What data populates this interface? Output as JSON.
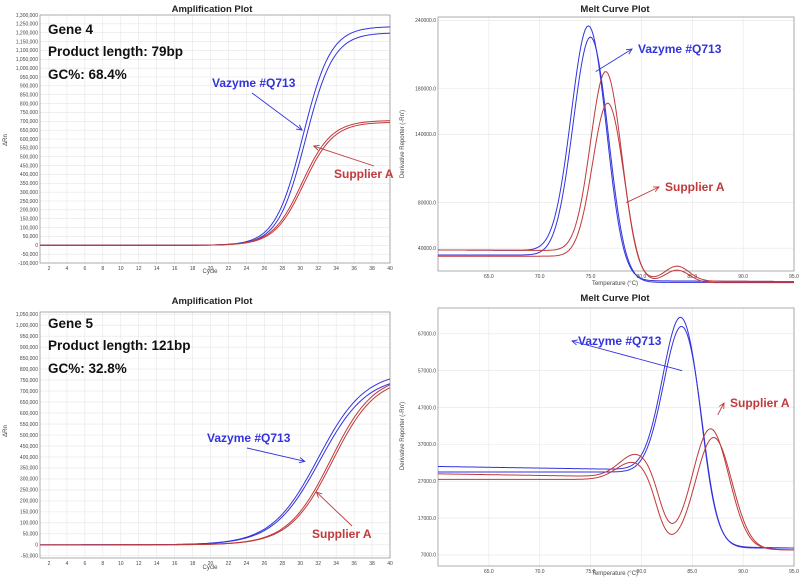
{
  "chart_data": [
    {
      "type": "line",
      "title": "Amplification Plot",
      "xlabel": "Cycle",
      "ylabel": "ΔRn",
      "xlim": [
        1,
        40
      ],
      "ylim": [
        -100000,
        1300000
      ],
      "xticks": [
        "2",
        "4",
        "6",
        "8",
        "10",
        "12",
        "14",
        "16",
        "18",
        "20",
        "22",
        "24",
        "26",
        "28",
        "30",
        "32",
        "34",
        "36",
        "38",
        "40"
      ],
      "yticks": [
        "-100,000",
        "-50,000",
        "0",
        "50,000",
        "100,000",
        "150,000",
        "200,000",
        "250,000",
        "300,000",
        "350,000",
        "400,000",
        "450,000",
        "500,000",
        "550,000",
        "600,000",
        "650,000",
        "700,000",
        "750,000",
        "800,000",
        "850,000",
        "900,000",
        "950,000",
        "1,000,000",
        "1,050,000",
        "1,100,000",
        "1,150,000",
        "1,200,000",
        "1,250,000",
        "1,300,000"
      ],
      "info": [
        "Gene 4",
        "Product length: 79bp",
        "GC%: 68.4%"
      ],
      "series": [
        {
          "name": "Vazyme #Q713",
          "color": "#3333dd",
          "plateau": 1235000,
          "midpoint": 30.3,
          "slope": 1.55
        },
        {
          "name": "Vazyme #Q713",
          "color": "#3333dd",
          "plateau": 1200000,
          "midpoint": 30.6,
          "slope": 1.55
        },
        {
          "name": "Supplier A",
          "color": "#c0393b",
          "plateau": 695000,
          "midpoint": 30.4,
          "slope": 1.65
        },
        {
          "name": "Supplier A",
          "color": "#c0393b",
          "plateau": 705000,
          "midpoint": 30.2,
          "slope": 1.65
        }
      ],
      "annotations": [
        {
          "text": "Vazyme #Q713",
          "series": "Vazyme #Q713",
          "x": 30.2,
          "y": 650000
        },
        {
          "text": "Supplier A",
          "series": "Supplier A",
          "x": 31.5,
          "y": 560000
        }
      ]
    },
    {
      "type": "line",
      "title": "Melt Curve Plot",
      "xlabel": "Temperature (°C)",
      "ylabel": "Derivative Reporter (-Rn')",
      "xlim": [
        60,
        95
      ],
      "ylim": [
        20000,
        243000
      ],
      "xticks": [
        "65.0",
        "70.0",
        "75.0",
        "80.0",
        "85.0",
        "90.0",
        "95.0"
      ],
      "yticks": [
        "40000.0",
        "80000.0",
        "140000.0",
        "180000.0",
        "240000.0"
      ],
      "series": [
        {
          "name": "Vazyme #Q713",
          "color": "#3333dd",
          "baseline": 35000,
          "peaks": [
            [
              74.8,
              198000,
              1.7
            ]
          ]
        },
        {
          "name": "Vazyme #Q713",
          "color": "#3333dd",
          "baseline": 32000,
          "peaks": [
            [
              75.0,
              192000,
              1.7
            ]
          ]
        },
        {
          "name": "Supplier A",
          "color": "#c0393b",
          "baseline": 35000,
          "peaks": [
            [
              76.5,
              158000,
              1.5
            ],
            [
              83.5,
              13000,
              1.2
            ]
          ]
        },
        {
          "name": "Supplier A",
          "color": "#c0393b",
          "baseline": 31000,
          "peaks": [
            [
              76.7,
              135000,
              1.5
            ],
            [
              83.5,
              11000,
              1.2
            ]
          ]
        }
      ],
      "annotations": [
        {
          "text": "Vazyme #Q713",
          "series": "Vazyme #Q713",
          "x": 75.5,
          "y": 195000
        },
        {
          "text": "Supplier A",
          "series": "Supplier A",
          "x": 78.5,
          "y": 80000
        }
      ]
    },
    {
      "type": "line",
      "title": "Amplification Plot",
      "xlabel": "Cycle",
      "ylabel": "ΔRn",
      "xlim": [
        1,
        40
      ],
      "ylim": [
        -60000,
        1060000
      ],
      "xticks": [
        "2",
        "4",
        "6",
        "8",
        "10",
        "12",
        "14",
        "16",
        "18",
        "20",
        "22",
        "24",
        "26",
        "28",
        "30",
        "32",
        "34",
        "36",
        "38",
        "40"
      ],
      "yticks": [
        "-50,000",
        "0",
        "50,000",
        "100,000",
        "150,000",
        "200,000",
        "250,000",
        "300,000",
        "350,000",
        "400,000",
        "450,000",
        "500,000",
        "550,000",
        "600,000",
        "650,000",
        "700,000",
        "750,000",
        "800,000",
        "850,000",
        "900,000",
        "950,000",
        "1,000,000",
        "1,050,000"
      ],
      "info": [
        "Gene 5",
        "Product length: 121bp",
        "GC%: 32.8%"
      ],
      "series": [
        {
          "name": "Vazyme #Q713",
          "color": "#3333dd",
          "plateau": 790000,
          "midpoint": 32.0,
          "slope": 2.6
        },
        {
          "name": "Vazyme #Q713",
          "color": "#3333dd",
          "plateau": 770000,
          "midpoint": 32.2,
          "slope": 2.6
        },
        {
          "name": "Supplier A",
          "color": "#c0393b",
          "plateau": 775000,
          "midpoint": 33.4,
          "slope": 2.4
        },
        {
          "name": "Supplier A",
          "color": "#c0393b",
          "plateau": 765000,
          "midpoint": 33.6,
          "slope": 2.4
        }
      ],
      "annotations": [
        {
          "text": "Vazyme #Q713",
          "series": "Vazyme #Q713",
          "x": 30.5,
          "y": 380000
        },
        {
          "text": "Supplier A",
          "series": "Supplier A",
          "x": 31.8,
          "y": 240000
        }
      ]
    },
    {
      "type": "line",
      "title": "Melt Curve Plot",
      "xlabel": "Temperature (°C)",
      "ylabel": "Derivative Reporter (-Rn')",
      "xlim": [
        60,
        95
      ],
      "ylim": [
        4000,
        74000
      ],
      "xticks": [
        "65.0",
        "70.0",
        "75.0",
        "80.0",
        "85.0",
        "90.0",
        "95.0"
      ],
      "yticks": [
        "7000.0",
        "17000.0",
        "27000.0",
        "37000.0",
        "47000.0",
        "57000.0",
        "67000.0"
      ],
      "series": [
        {
          "name": "Vazyme #Q713",
          "color": "#3333dd",
          "baseline": 27500,
          "peaks": [
            [
              83.9,
              42000,
              1.8
            ]
          ]
        },
        {
          "name": "Vazyme #Q713",
          "color": "#3333dd",
          "baseline": 27500,
          "peaks": [
            [
              84.0,
              40000,
              1.8
            ]
          ]
        },
        {
          "name": "Supplier A",
          "color": "#c0393b",
          "baseline": 25500,
          "peaks": [
            [
              79.6,
              6500,
              1.7
            ],
            [
              86.8,
              32500,
              1.8
            ]
          ]
        },
        {
          "name": "Supplier A",
          "color": "#c0393b",
          "baseline": 25500,
          "peaks": [
            [
              79.3,
              5000,
              1.7
            ],
            [
              87.1,
              30500,
              1.8
            ]
          ]
        }
      ],
      "annotations": [
        {
          "text": "Vazyme #Q713",
          "series": "Vazyme #Q713",
          "x": 84.0,
          "y": 57000
        },
        {
          "text": "Supplier A",
          "series": "Supplier A",
          "x": 87.5,
          "y": 45000
        }
      ]
    }
  ]
}
